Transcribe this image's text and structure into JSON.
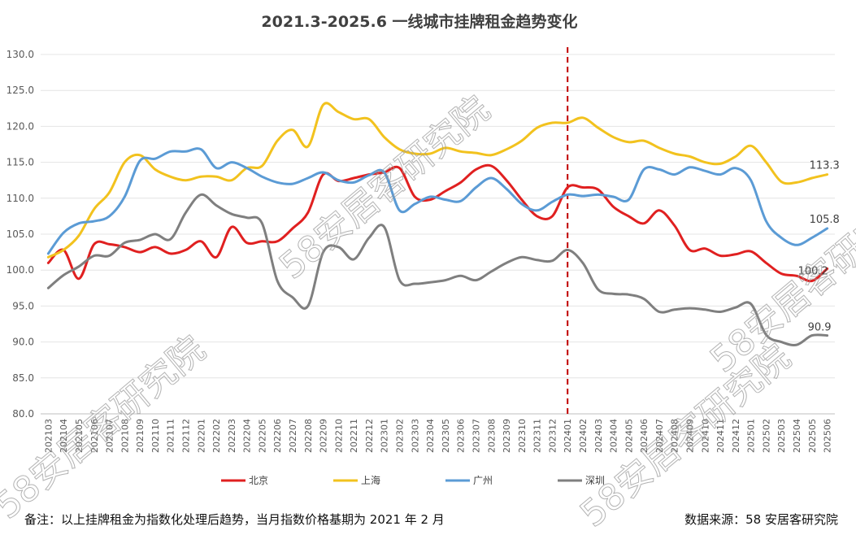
{
  "chart_data": {
    "type": "line",
    "title": "2021.3-2025.6 一线城市挂牌租金趋势变化",
    "xlabel": "",
    "ylabel": "",
    "ylim": [
      80,
      130
    ],
    "yticks": [
      "80.0",
      "85.0",
      "90.0",
      "95.0",
      "100.0",
      "105.0",
      "110.0",
      "115.0",
      "120.0",
      "125.0",
      "130.0"
    ],
    "grid": true,
    "legend": "bottom",
    "x": [
      "202103",
      "202104",
      "202105",
      "202106",
      "202107",
      "202108",
      "202109",
      "202110",
      "202111",
      "202112",
      "202201",
      "202202",
      "202203",
      "202204",
      "202205",
      "202206",
      "202207",
      "202208",
      "202209",
      "202210",
      "202211",
      "202212",
      "202301",
      "202302",
      "202303",
      "202304",
      "202305",
      "202306",
      "202307",
      "202308",
      "202309",
      "202310",
      "202311",
      "202312",
      "202401",
      "202402",
      "202403",
      "202404",
      "202405",
      "202406",
      "202407",
      "202408",
      "202409",
      "202410",
      "202411",
      "202412",
      "202501",
      "202502",
      "202503",
      "202504",
      "202505",
      "202506"
    ],
    "annotation": {
      "type": "vline",
      "x": "202401",
      "color": "#c00000"
    },
    "series": [
      {
        "name": "北京",
        "color": "#e02020",
        "values": [
          101.0,
          102.8,
          98.8,
          103.6,
          103.6,
          103.2,
          102.5,
          103.2,
          102.3,
          102.8,
          104.0,
          101.8,
          106.0,
          103.8,
          104.0,
          104.0,
          105.8,
          108.0,
          113.3,
          112.4,
          112.8,
          113.3,
          113.6,
          114.2,
          110.2,
          109.8,
          111.0,
          112.2,
          114.0,
          114.5,
          112.5,
          109.8,
          107.5,
          107.5,
          111.5,
          111.5,
          111.2,
          108.8,
          107.5,
          106.5,
          108.3,
          106.2,
          102.8,
          103.0,
          102.0,
          102.2,
          102.6,
          101.0,
          99.5,
          99.2,
          98.5,
          100.2
        ]
      },
      {
        "name": "上海",
        "color": "#f2c21e",
        "values": [
          101.8,
          102.8,
          104.8,
          108.5,
          110.8,
          115.0,
          116.0,
          114.0,
          113.0,
          112.5,
          113.0,
          113.0,
          112.5,
          114.2,
          114.5,
          118.0,
          119.5,
          117.2,
          123.0,
          122.0,
          121.0,
          121.0,
          118.5,
          116.8,
          116.2,
          116.2,
          117.0,
          116.5,
          116.3,
          116.0,
          116.8,
          118.0,
          119.8,
          120.5,
          120.5,
          121.2,
          119.8,
          118.5,
          117.8,
          118.0,
          117.0,
          116.2,
          115.8,
          115.0,
          114.8,
          115.8,
          117.3,
          115.0,
          112.3,
          112.2,
          112.8,
          113.3
        ]
      },
      {
        "name": "广州",
        "color": "#5b9bd5",
        "values": [
          102.3,
          105.2,
          106.5,
          106.8,
          107.5,
          110.2,
          115.2,
          115.5,
          116.5,
          116.5,
          116.8,
          114.2,
          115.0,
          114.2,
          113.0,
          112.2,
          112.0,
          112.8,
          113.6,
          112.5,
          112.2,
          113.2,
          113.6,
          108.3,
          109.2,
          110.2,
          109.8,
          109.6,
          111.5,
          112.8,
          111.3,
          109.2,
          108.3,
          109.5,
          110.5,
          110.3,
          110.5,
          110.2,
          109.8,
          114.0,
          114.0,
          113.3,
          114.3,
          113.8,
          113.3,
          114.2,
          112.5,
          106.8,
          104.5,
          103.5,
          104.5,
          105.8
        ]
      },
      {
        "name": "深圳",
        "color": "#7f7f7f",
        "values": [
          97.5,
          99.3,
          100.5,
          102.0,
          102.0,
          103.8,
          104.2,
          105.0,
          104.3,
          108.0,
          110.5,
          109.0,
          107.8,
          107.3,
          106.5,
          98.5,
          96.2,
          95.0,
          102.5,
          103.2,
          101.5,
          104.5,
          106.0,
          98.6,
          98.1,
          98.3,
          98.6,
          99.2,
          98.6,
          99.8,
          101.0,
          101.8,
          101.4,
          101.3,
          102.8,
          101.0,
          97.3,
          96.7,
          96.6,
          96.0,
          94.2,
          94.5,
          94.7,
          94.5,
          94.2,
          94.8,
          95.3,
          91.0,
          90.0,
          89.6,
          90.9,
          90.9
        ]
      }
    ],
    "end_labels": [
      "100.2",
      "113.3",
      "105.8",
      "90.9"
    ]
  },
  "watermark": "58安居客研究院",
  "footer": {
    "note": "备注：以上挂牌租金为指数化处理后趋势，当月指数价格基期为 2021 年 2 月",
    "source": "数据来源：58 安居客研究院"
  }
}
